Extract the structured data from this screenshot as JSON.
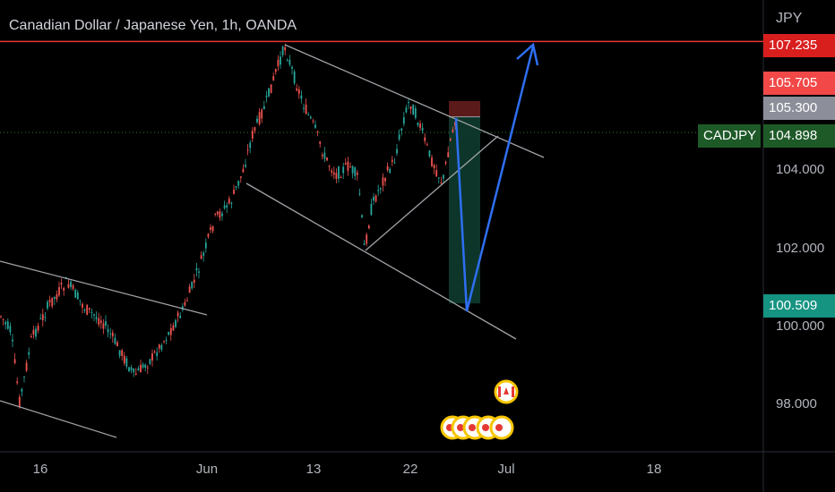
{
  "header": {
    "title": "Canadian Dollar / Japanese Yen, 1h, OANDA"
  },
  "axis": {
    "currency": "JPY"
  },
  "symbol": {
    "name": "CADJPY",
    "last": "104.898",
    "color": "#1e5a28"
  },
  "price_tags": [
    {
      "value": "107.235",
      "color": "#d91e1e"
    },
    {
      "value": "105.705",
      "color": "#f24848"
    },
    {
      "value": "105.300",
      "color": "#8c8f99"
    },
    {
      "value": "100.509",
      "color": "#169482"
    }
  ],
  "chart_data": {
    "type": "line",
    "title": "Canadian Dollar / Japanese Yen, 1h, OANDA",
    "y_tick_labels": [
      "104.000",
      "102.000",
      "100.000",
      "98.000"
    ],
    "x_tick_labels": [
      "16",
      "Jun",
      "13",
      "22",
      "Jul",
      "18"
    ],
    "ylim": [
      96.7,
      108.3
    ],
    "resistance_level": 107.235,
    "current_price": 104.898,
    "target_stop": 105.705,
    "entry": 105.3,
    "target_low": 100.509,
    "grid": false
  },
  "colors": {
    "bull": "#26a69a",
    "bear": "#ef5350",
    "projection": "#2e6ff2"
  }
}
